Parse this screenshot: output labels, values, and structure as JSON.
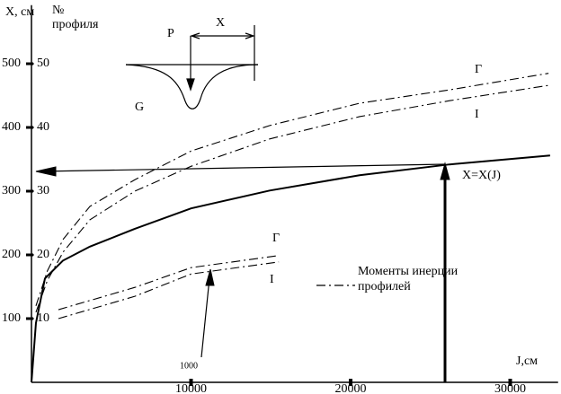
{
  "chart_data": {
    "type": "line",
    "y_label": "X, см",
    "y2_label": "№ профиля",
    "x_label": "J,см",
    "annotations": {
      "inset_p": "Р",
      "inset_x": "X",
      "inset_g": "G",
      "moments": "Моменты инерции профилей",
      "small": "1000"
    },
    "xlim": [
      0,
      33000
    ],
    "ylim": [
      0,
      592
    ],
    "y2lim": [
      0,
      59.2
    ],
    "xticks": [
      10000,
      20000,
      30000
    ],
    "yticks": [
      100,
      200,
      300,
      400,
      500
    ],
    "y2ticks": [
      10,
      20,
      30,
      40,
      50
    ],
    "color": "#000000",
    "series": [
      {
        "name": "Г",
        "style": "dashdot",
        "x": [
          280,
          1000,
          2000,
          3660,
          6480,
          10000,
          14930,
          20560,
          26200,
          32400
        ],
        "values": [
          120,
          175,
          225,
          276,
          318,
          363,
          403,
          438,
          459,
          485
        ]
      },
      {
        "name": "I",
        "style": "dashdot",
        "x": [
          280,
          1000,
          2000,
          3660,
          6480,
          10000,
          14930,
          20560,
          26200,
          32400
        ],
        "values": [
          110,
          160,
          205,
          255,
          300,
          339,
          382,
          417,
          442,
          466
        ]
      },
      {
        "name": "X=X(J)",
        "style": "solid",
        "x": [
          0,
          280,
          845,
          1970,
          3660,
          6480,
          10000,
          14930,
          20560,
          26200,
          32500
        ],
        "values": [
          0,
          93,
          163,
          191,
          213,
          241,
          273,
          301,
          325,
          342,
          356
        ]
      },
      {
        "name": "Г",
        "style": "dashdot",
        "x": [
          1690,
          6480,
          10000,
          15500
        ],
        "values": [
          114,
          149,
          180,
          199
        ]
      },
      {
        "name": "I",
        "style": "dashdot",
        "x": [
          1690,
          6480,
          10000,
          15500
        ],
        "values": [
          100,
          135,
          170,
          189
        ]
      }
    ]
  }
}
